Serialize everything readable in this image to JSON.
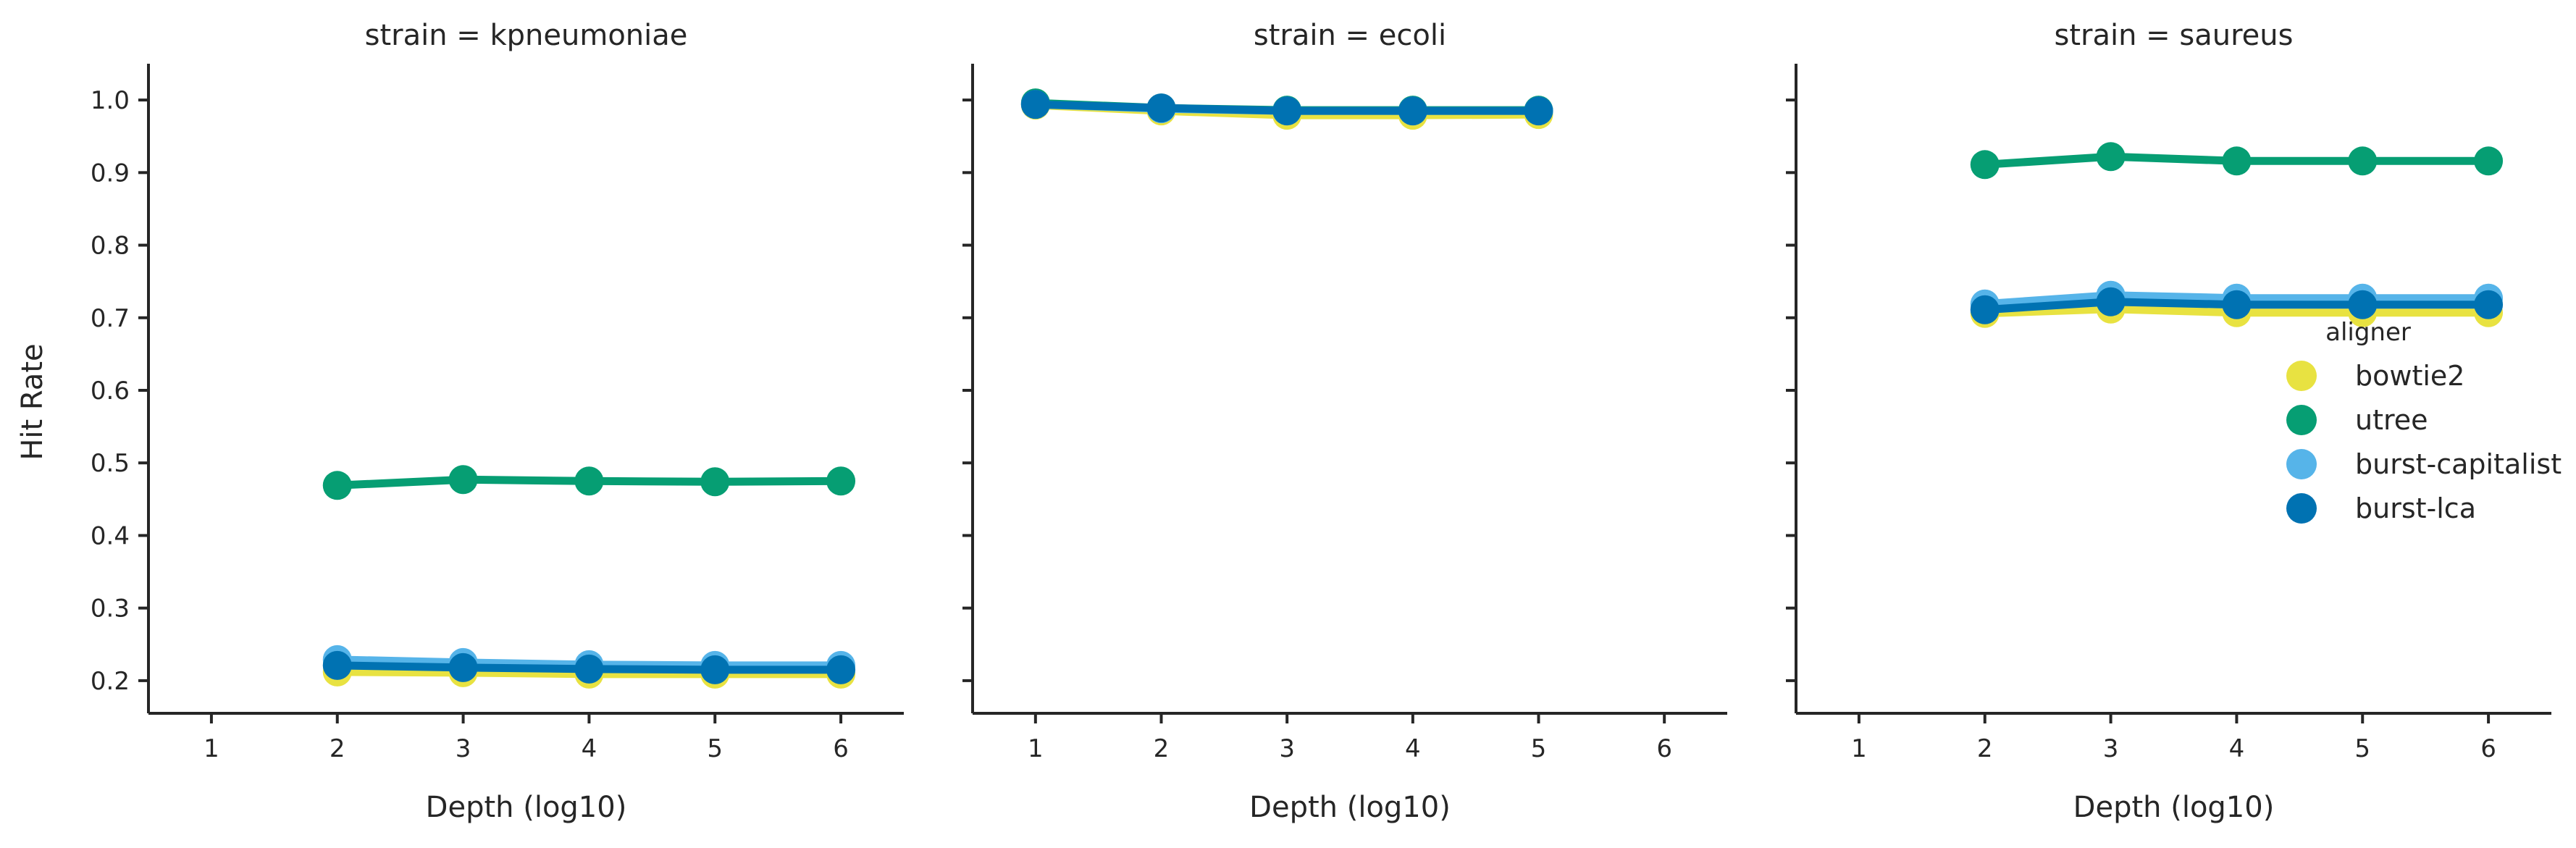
{
  "chart_data": {
    "type": "line",
    "xlabel": "Depth (log10)",
    "ylabel": "Hit Rate",
    "xlim": [
      0.5,
      6.5
    ],
    "ylim": [
      0.155,
      1.05
    ],
    "xticks": [
      "1",
      "2",
      "3",
      "4",
      "5",
      "6"
    ],
    "yticks": [
      "0.2",
      "0.3",
      "0.4",
      "0.5",
      "0.6",
      "0.7",
      "0.8",
      "0.9",
      "1.0"
    ],
    "legend": {
      "title": "aligner",
      "placement": "right"
    },
    "colors": {
      "bowtie2": "#e8e241",
      "utree": "#069e73",
      "burst-capitalist": "#56b4e9",
      "burst-lca": "#0072b2"
    },
    "panels": [
      {
        "title": "strain = kpneumoniae",
        "series": [
          {
            "name": "bowtie2",
            "x": [
              2,
              3,
              4,
              5,
              6
            ],
            "y": [
              0.212,
              0.211,
              0.209,
              0.209,
              0.209
            ]
          },
          {
            "name": "utree",
            "x": [
              2,
              3,
              4,
              5,
              6
            ],
            "y": [
              0.469,
              0.477,
              0.475,
              0.474,
              0.475
            ]
          },
          {
            "name": "burst-capitalist",
            "x": [
              2,
              3,
              4,
              5,
              6
            ],
            "y": [
              0.229,
              0.225,
              0.222,
              0.221,
              0.221
            ]
          },
          {
            "name": "burst-lca",
            "x": [
              2,
              3,
              4,
              5,
              6
            ],
            "y": [
              0.221,
              0.218,
              0.216,
              0.215,
              0.215
            ]
          }
        ]
      },
      {
        "title": "strain = ecoli",
        "series": [
          {
            "name": "bowtie2",
            "x": [
              1,
              2,
              3,
              4,
              5
            ],
            "y": [
              0.993,
              0.985,
              0.979,
              0.979,
              0.98
            ]
          },
          {
            "name": "utree",
            "x": [
              1,
              2,
              3,
              4,
              5
            ],
            "y": [
              0.996,
              0.989,
              0.986,
              0.986,
              0.986
            ]
          },
          {
            "name": "burst-capitalist",
            "x": [
              1,
              2,
              3,
              4,
              5
            ],
            "y": [
              0.994,
              0.988,
              0.985,
              0.985,
              0.985
            ]
          },
          {
            "name": "burst-lca",
            "x": [
              1,
              2,
              3,
              4,
              5
            ],
            "y": [
              0.994,
              0.989,
              0.985,
              0.985,
              0.985
            ]
          }
        ]
      },
      {
        "title": "strain = saureus",
        "series": [
          {
            "name": "bowtie2",
            "x": [
              2,
              3,
              4,
              5,
              6
            ],
            "y": [
              0.706,
              0.712,
              0.707,
              0.707,
              0.707
            ]
          },
          {
            "name": "utree",
            "x": [
              2,
              3,
              4,
              5,
              6
            ],
            "y": [
              0.911,
              0.922,
              0.916,
              0.916,
              0.916
            ]
          },
          {
            "name": "burst-capitalist",
            "x": [
              2,
              3,
              4,
              5,
              6
            ],
            "y": [
              0.719,
              0.731,
              0.727,
              0.727,
              0.727
            ]
          },
          {
            "name": "burst-lca",
            "x": [
              2,
              3,
              4,
              5,
              6
            ],
            "y": [
              0.711,
              0.722,
              0.718,
              0.718,
              0.718
            ]
          }
        ]
      }
    ]
  }
}
